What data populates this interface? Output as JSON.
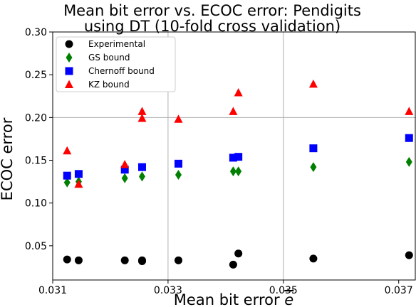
{
  "chart_data": {
    "type": "scatter",
    "title_lines": [
      "Mean bit error vs. ECOC error: Pendigits",
      "using DT (10-fold cross validation)"
    ],
    "xlabel": "Mean bit error ",
    "xlabel_symbol": "e",
    "ylabel": "ECOC error",
    "xlim": [
      0.031,
      0.0373
    ],
    "ylim": [
      0.01,
      0.3
    ],
    "x_ticks": [
      0.031,
      0.033,
      0.035,
      0.037
    ],
    "x_tick_labels": [
      "0.031",
      "0.033",
      "0.035",
      "0.037"
    ],
    "y_ticks": [
      0.05,
      0.1,
      0.15,
      0.2,
      0.25,
      0.3
    ],
    "y_tick_labels": [
      "0.05",
      "0.10",
      "0.15",
      "0.20",
      "0.25",
      "0.30"
    ],
    "grid": true,
    "legend_position": "top-left",
    "series": [
      {
        "name": "Experimental",
        "marker": "circle",
        "color": "#000000",
        "points": [
          [
            0.03125,
            0.034
          ],
          [
            0.03145,
            0.033
          ],
          [
            0.03225,
            0.033
          ],
          [
            0.03255,
            0.032
          ],
          [
            0.03255,
            0.033
          ],
          [
            0.03318,
            0.033
          ],
          [
            0.03413,
            0.028
          ],
          [
            0.03422,
            0.041
          ],
          [
            0.03552,
            0.035
          ],
          [
            0.03718,
            0.039
          ]
        ]
      },
      {
        "name": "GS bound",
        "marker": "diamond",
        "color": "#008000",
        "points": [
          [
            0.03125,
            0.124
          ],
          [
            0.03145,
            0.125
          ],
          [
            0.03225,
            0.129
          ],
          [
            0.03255,
            0.131
          ],
          [
            0.03318,
            0.133
          ],
          [
            0.03413,
            0.137
          ],
          [
            0.03422,
            0.137
          ],
          [
            0.03552,
            0.142
          ],
          [
            0.03718,
            0.148
          ]
        ]
      },
      {
        "name": "Chernoff bound",
        "marker": "square",
        "color": "#0000ff",
        "points": [
          [
            0.03125,
            0.132
          ],
          [
            0.03145,
            0.134
          ],
          [
            0.03225,
            0.139
          ],
          [
            0.03255,
            0.142
          ],
          [
            0.03318,
            0.146
          ],
          [
            0.03413,
            0.153
          ],
          [
            0.03422,
            0.154
          ],
          [
            0.03552,
            0.164
          ],
          [
            0.03718,
            0.176
          ]
        ]
      },
      {
        "name": "KZ bound",
        "marker": "triangle",
        "color": "#ff0000",
        "points": [
          [
            0.03125,
            0.161
          ],
          [
            0.03145,
            0.122
          ],
          [
            0.03225,
            0.145
          ],
          [
            0.03255,
            0.199
          ],
          [
            0.03255,
            0.207
          ],
          [
            0.03318,
            0.198
          ],
          [
            0.03413,
            0.207
          ],
          [
            0.03422,
            0.229
          ],
          [
            0.03552,
            0.239
          ],
          [
            0.03718,
            0.207
          ]
        ]
      }
    ]
  }
}
